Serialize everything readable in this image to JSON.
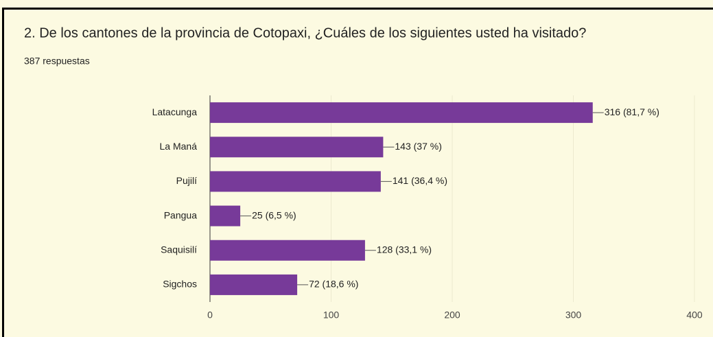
{
  "chart_data": {
    "type": "bar",
    "horizontal": true,
    "title": "2. De los cantones de la provincia de Cotopaxi, ¿Cuáles de los siguientes usted ha visitado?",
    "subtitle": "387 respuestas",
    "categories": [
      "Latacunga",
      "La Maná",
      "Pujilí",
      "Pangua",
      "Saquisilí",
      "Sigchos"
    ],
    "values": [
      316,
      143,
      141,
      25,
      128,
      72
    ],
    "value_labels": [
      "316 (81,7 %)",
      "143 (37 %)",
      "141 (36,4 %)",
      "25 (6,5 %)",
      "128 (33,1 %)",
      "72 (18,6 %)"
    ],
    "color": "#773a99",
    "xlim": [
      0,
      400
    ],
    "xticks": [
      0,
      100,
      200,
      300,
      400
    ],
    "grid": true
  }
}
